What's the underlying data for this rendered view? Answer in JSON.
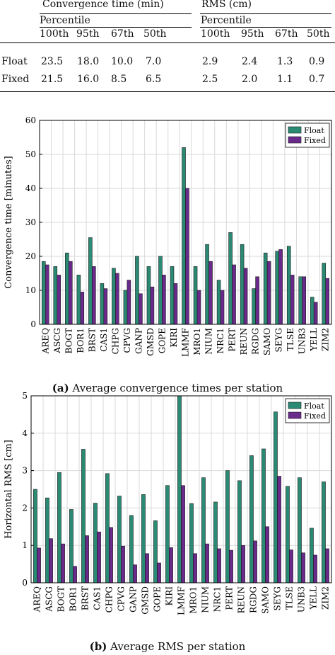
{
  "table": {
    "group_headers": [
      "Convergence time (min)",
      "RMS (cm)"
    ],
    "sub_header": "Percentile",
    "percentiles": [
      "100th",
      "95th",
      "67th",
      "50th"
    ],
    "rows": [
      {
        "label": "Float",
        "conv": [
          "23.5",
          "18.0",
          "10.0",
          "7.0"
        ],
        "rms": [
          "2.9",
          "2.4",
          "1.3",
          "0.9"
        ]
      },
      {
        "label": "Fixed",
        "conv": [
          "21.5",
          "16.0",
          "8.5",
          "6.5"
        ],
        "rms": [
          "2.5",
          "2.0",
          "1.1",
          "0.7"
        ]
      }
    ]
  },
  "colors": {
    "float": "#2a8a73",
    "fixed": "#6a2a8c",
    "grid": "#d9d9d9"
  },
  "chart_data": [
    {
      "type": "bar",
      "title": "",
      "xlabel": "",
      "ylabel": "Convergence time [minutes]",
      "ylim": [
        0,
        60
      ],
      "yticks": [
        0,
        10,
        20,
        30,
        40,
        50,
        60
      ],
      "grid": true,
      "legend": "top-right",
      "caption_label": "(a)",
      "caption_text": "Average convergence times per station",
      "categories": [
        "AREQ",
        "ASCG",
        "BOGT",
        "BOR1",
        "BRST",
        "CAS1",
        "CHPG",
        "CPVG",
        "GANP",
        "GMSD",
        "GOPE",
        "KIRI",
        "LMMF",
        "MRO1",
        "NIUM",
        "NRC1",
        "PERT",
        "REUN",
        "RGDG",
        "SAMO",
        "SEYG",
        "TLSE",
        "UNB3",
        "YELL",
        "ZIM2"
      ],
      "series": [
        {
          "name": "Float",
          "values": [
            18.5,
            17,
            21,
            14.5,
            25.5,
            12,
            16.5,
            10,
            20,
            17,
            20,
            17,
            52,
            17,
            23.5,
            13,
            27,
            23.5,
            10.5,
            21,
            21.5,
            23,
            14,
            8,
            18
          ]
        },
        {
          "name": "Fixed",
          "values": [
            17.5,
            14.5,
            18.5,
            9.5,
            17,
            10.5,
            15,
            13,
            9,
            11,
            14.5,
            12,
            40,
            10,
            18.5,
            10,
            17.5,
            16.5,
            14,
            18.5,
            22,
            14.5,
            14,
            6.5,
            13.5
          ]
        }
      ]
    },
    {
      "type": "bar",
      "title": "",
      "xlabel": "",
      "ylabel": "Horizontal RMS [cm]",
      "ylim": [
        0,
        5
      ],
      "yticks": [
        0,
        1,
        2,
        3,
        4,
        5
      ],
      "grid": true,
      "legend": "top-right",
      "caption_label": "(b)",
      "caption_text": "Average RMS per station",
      "categories": [
        "AREQ",
        "ASCG",
        "BOGT",
        "BOR1",
        "BRST",
        "CAS1",
        "CHPG",
        "CPVG",
        "GANP",
        "GMSD",
        "GOPE",
        "KIRI",
        "LMMF",
        "MRO1",
        "NIUM",
        "NRC1",
        "PERT",
        "REUN",
        "RGDG",
        "SAMO",
        "SEYG",
        "TLSE",
        "UNB3",
        "YELL",
        "ZIM2"
      ],
      "series": [
        {
          "name": "Float",
          "values": [
            2.5,
            2.27,
            2.95,
            1.96,
            3.57,
            2.13,
            2.92,
            2.32,
            1.8,
            2.36,
            1.66,
            2.6,
            5.0,
            2.12,
            2.81,
            2.16,
            3.0,
            2.73,
            3.4,
            3.58,
            4.57,
            2.58,
            2.81,
            1.46,
            2.7
          ]
        },
        {
          "name": "Fixed",
          "values": [
            0.93,
            1.18,
            1.04,
            0.44,
            1.26,
            1.36,
            1.48,
            0.98,
            0.48,
            0.78,
            0.53,
            0.94,
            2.6,
            0.78,
            1.04,
            0.91,
            0.87,
            1.0,
            1.12,
            1.5,
            2.85,
            0.88,
            0.8,
            0.74,
            0.91
          ]
        }
      ]
    }
  ]
}
